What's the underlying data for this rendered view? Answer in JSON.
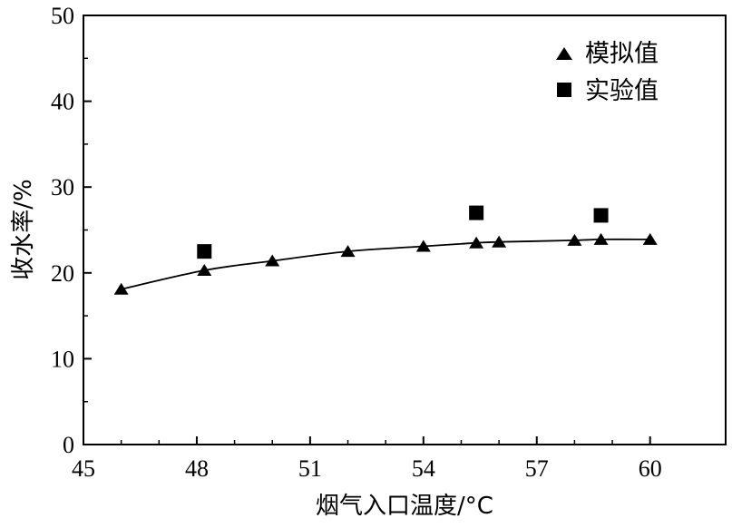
{
  "chart_data": {
    "type": "scatter",
    "xlabel": "烟气入口温度/°C",
    "ylabel": "收水率/%",
    "xlim": [
      45,
      62
    ],
    "ylim": [
      0,
      50
    ],
    "xticks": [
      45,
      48,
      51,
      54,
      57,
      60
    ],
    "yticks": [
      0,
      10,
      20,
      30,
      40,
      50
    ],
    "grid": false,
    "legend_position": "top-right",
    "series": [
      {
        "name": "模拟值",
        "marker": "triangle",
        "connected": true,
        "x": [
          46,
          48.2,
          50,
          52,
          54,
          55.4,
          56,
          58,
          58.7,
          60
        ],
        "y": [
          18.1,
          20.3,
          21.4,
          22.5,
          23.1,
          23.5,
          23.6,
          23.8,
          23.9,
          23.9
        ]
      },
      {
        "name": "实验值",
        "marker": "square",
        "connected": false,
        "x": [
          48.2,
          55.4,
          58.7
        ],
        "y": [
          22.5,
          27.0,
          26.7
        ]
      }
    ]
  }
}
